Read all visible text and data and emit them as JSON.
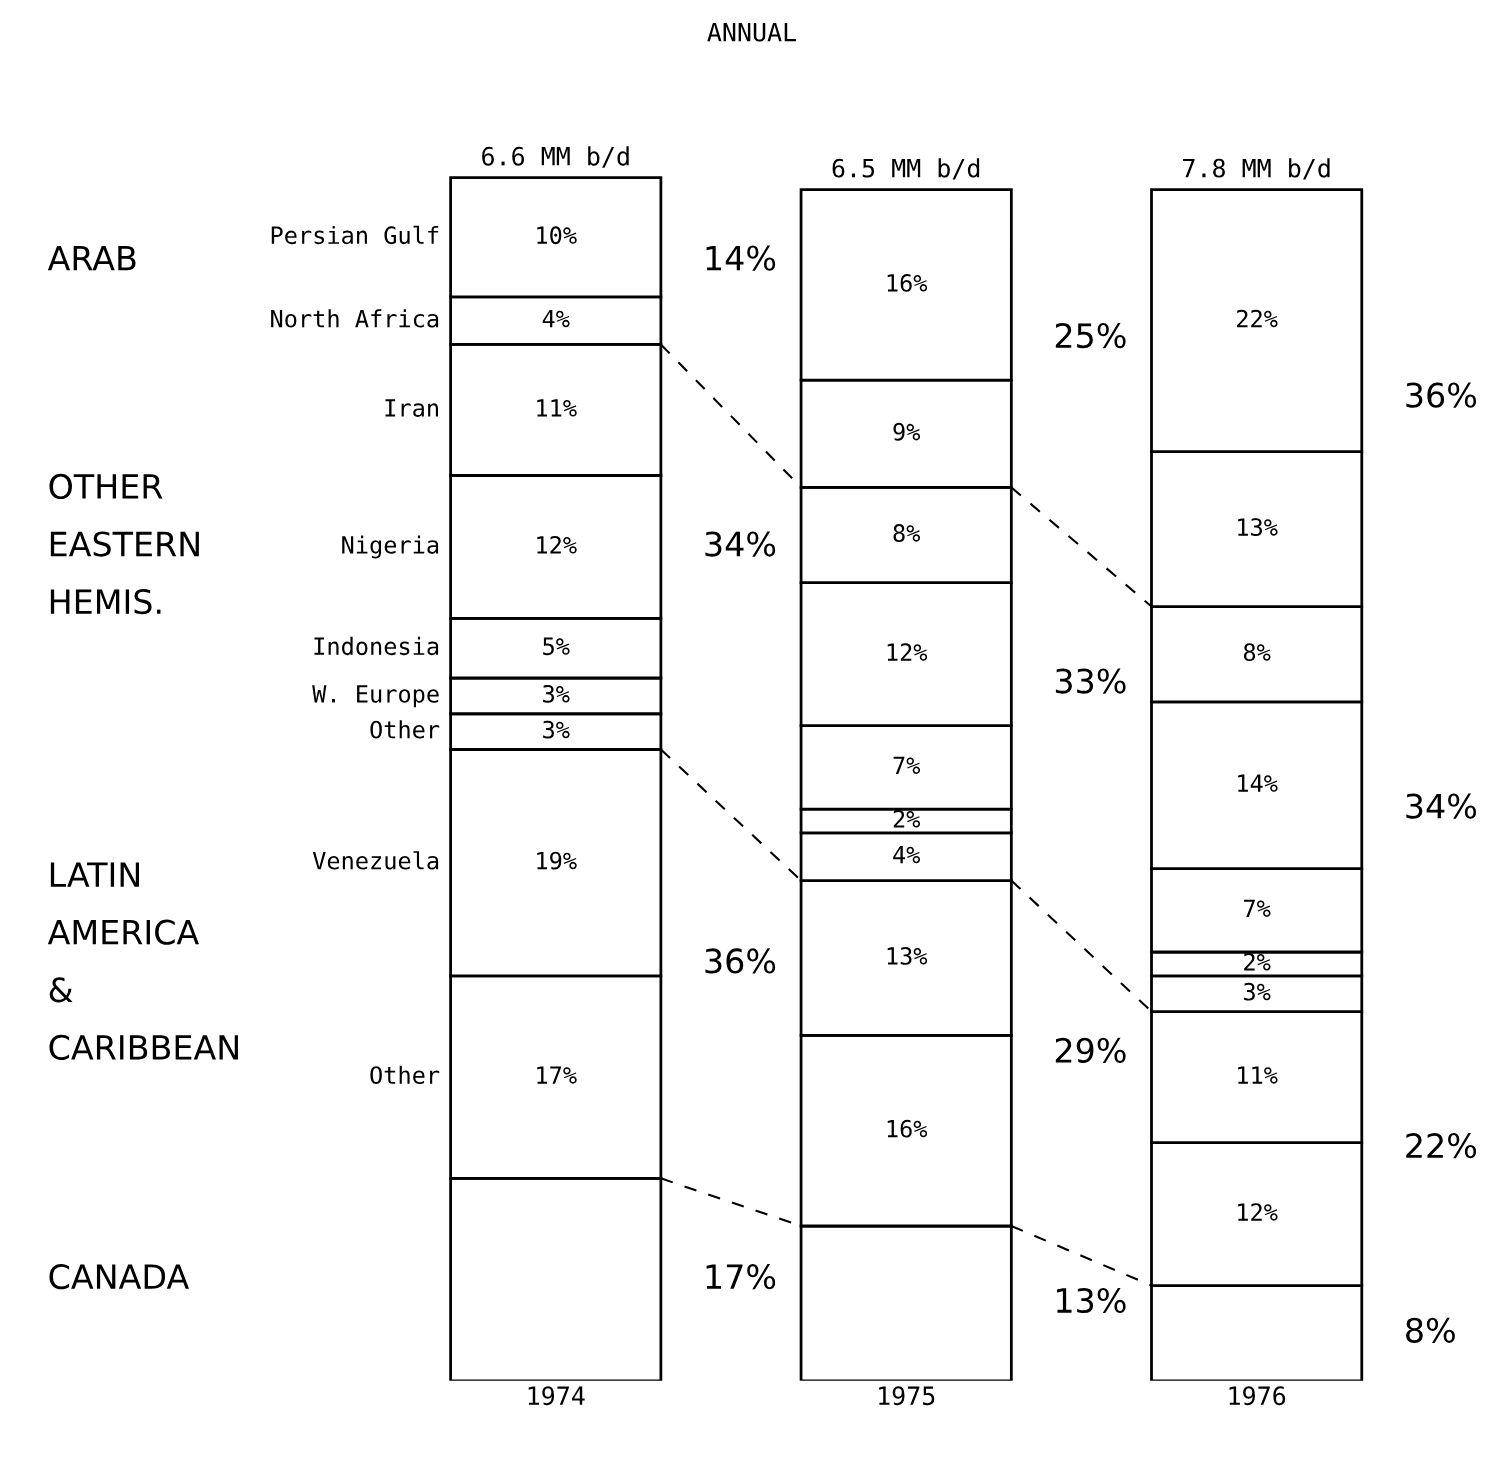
{
  "chart_data": {
    "type": "bar",
    "stacked": true,
    "title": "ANNUAL",
    "categories": [
      "1974",
      "1975",
      "1976"
    ],
    "series": [
      {
        "color": "#ffffff",
        "values": [
          17,
          13,
          8
        ],
        "value_labels": [
          null,
          null,
          null
        ]
      },
      {
        "name": "Other",
        "color": "#ffffff",
        "values": [
          17,
          16,
          12
        ],
        "value_labels": [
          "17%",
          "16%",
          "12%"
        ]
      },
      {
        "name": "Venezuela",
        "color": "#ffffff",
        "values": [
          19,
          13,
          11
        ],
        "value_labels": [
          "19%",
          "13%",
          "11%"
        ]
      },
      {
        "name": "Other",
        "color": "#ffffff",
        "values": [
          3,
          4,
          3
        ],
        "value_labels": [
          "3%",
          "4%",
          "3%"
        ]
      },
      {
        "name": "W. Europe",
        "color": "#ffffff",
        "values": [
          3,
          2,
          2
        ],
        "value_labels": [
          "3%",
          "2%",
          "2%"
        ]
      },
      {
        "name": "Indonesia",
        "color": "#ffffff",
        "values": [
          5,
          7,
          7
        ],
        "value_labels": [
          "5%",
          "7%",
          "7%"
        ]
      },
      {
        "name": "Nigeria",
        "color": "#ffffff",
        "values": [
          12,
          12,
          14
        ],
        "value_labels": [
          "12%",
          "12%",
          "14%"
        ]
      },
      {
        "name": "Iran",
        "color": "#ffffff",
        "values": [
          11,
          8,
          8
        ],
        "value_labels": [
          "11%",
          "8%",
          "8%"
        ]
      },
      {
        "name": "North Africa",
        "color": "#ffffff",
        "values": [
          4,
          9,
          13
        ],
        "value_labels": [
          "4%",
          "9%",
          "13%"
        ]
      },
      {
        "name": "Persian Gulf",
        "color": "#ffffff",
        "values": [
          10,
          16,
          22
        ],
        "value_labels": [
          "10%",
          "16%",
          "22%"
        ]
      }
    ],
    "annotations": [
      "6.6 MM b/d",
      "6.5 MM b/d",
      "7.8 MM b/d",
      "ARAB",
      "OTHER\nEASTERN\nHEMIS.",
      "LATIN\nAMERICA\n&\nCARIBBEAN",
      "CANADA",
      "14%",
      "34%",
      "36%",
      "17%",
      "25%",
      "33%",
      "29%",
      "13%",
      "36%",
      "34%",
      "22%",
      "8%"
    ],
    "legend": false
  }
}
